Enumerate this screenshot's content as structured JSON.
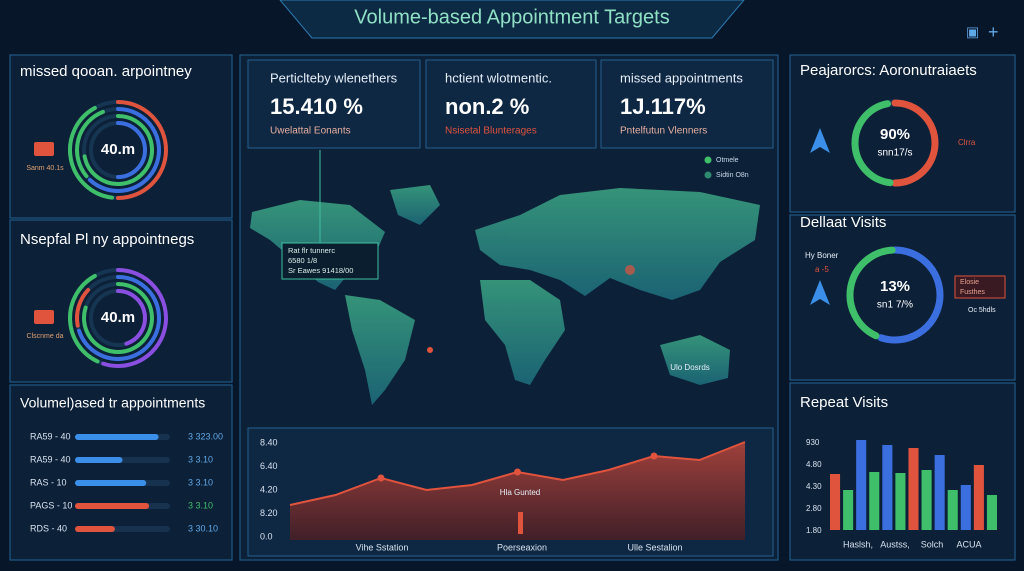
{
  "header": {
    "title": "Volume-based Appointment Targets"
  },
  "left": {
    "donut_a": {
      "title": "missed qooan. arpointney",
      "center": "40.m",
      "side": "Sanm 40.1s",
      "rings": [
        [
          {
            "color": "#e0533d",
            "value": 0.5
          },
          {
            "color": "#3fbf6a",
            "value": 0.4
          }
        ],
        [
          {
            "color": "#3b6fe0",
            "value": 0.62
          },
          {
            "color": "#3fbf6a",
            "value": 0.3
          }
        ],
        [
          {
            "color": "#3fbf6a",
            "value": 0.72
          }
        ],
        [
          {
            "color": "#3b6fe0",
            "value": 0.5
          }
        ]
      ]
    },
    "donut_b": {
      "title": "Nsepfal Pl ny appointnegs",
      "center": "40.m",
      "side": "Clscnme da",
      "rings": [
        [
          {
            "color": "#8a4fe0",
            "value": 0.55
          },
          {
            "color": "#3fbf6a",
            "value": 0.35
          }
        ],
        [
          {
            "color": "#3b6fe0",
            "value": 0.7
          },
          {
            "color": "#e0533d",
            "value": 0.15
          }
        ],
        [
          {
            "color": "#3fbf6a",
            "value": 0.8
          }
        ],
        [
          {
            "color": "#8a4fe0",
            "value": 0.45
          }
        ]
      ]
    },
    "bars": {
      "title": "Volumel)ased tr appointments",
      "rows": [
        {
          "label": "RA59 - 40",
          "value": 0.88,
          "color": "#3b8fe8",
          "text": "3 323.00"
        },
        {
          "label": "RA59 - 40",
          "value": 0.5,
          "color": "#3b8fe8",
          "text": "3 3.10"
        },
        {
          "label": "RAS - 10",
          "value": 0.75,
          "color": "#3b8fe8",
          "text": "3 3.10"
        },
        {
          "label": "PAGS - 10",
          "value": 0.78,
          "color": "#e0533d",
          "text": "3 3.10"
        },
        {
          "label": "RDS - 40",
          "value": 0.42,
          "color": "#e0533d",
          "text": "3 30.10"
        }
      ]
    }
  },
  "kpis": [
    {
      "title": "Perticlteby wlenethers",
      "value": "15.410 %",
      "sub": "Uwelattal Eonants",
      "sub_color": "#e8b0a0"
    },
    {
      "title": "hctient wlotmentic.",
      "value": "non.2 %",
      "sub": "Nsisetal Blunterages",
      "sub_color": "#e0533d"
    },
    {
      "title": "missed appointments",
      "value": "1J.117%",
      "sub": "Pntelfutun Vlenners",
      "sub_color": "#e8b0a0"
    }
  ],
  "map": {
    "box": [
      "Rat flr tunnerc",
      "6580 1/8",
      "Sr Eawes 91418/00"
    ],
    "legend": [
      "Otmele",
      "Sidtin  O8n"
    ],
    "note": "Ulo Dosrds"
  },
  "area": {
    "y_labels": [
      "8.40",
      "6.40",
      "4.20",
      "8.20",
      "0.0"
    ],
    "x_labels": [
      "Vihe Sstation",
      "Poerseaxion",
      "Ulle Sestalion"
    ],
    "annotation": "Hla Gunted",
    "values": [
      35,
      45,
      62,
      50,
      55,
      68,
      60,
      70,
      84,
      80,
      98
    ]
  },
  "right": {
    "donut_a": {
      "title": "Peajarorcs: Aoronutraiaets",
      "center": "90%",
      "sub": "snn17/s",
      "side": "Clrra",
      "segments": [
        {
          "color": "#e0533d",
          "value": 0.5
        },
        {
          "color": "#3fbf6a",
          "value": 0.45
        }
      ]
    },
    "donut_b": {
      "title": "Dellaat Visits",
      "center": "13%",
      "sub": "sn1 7/%",
      "side": [
        "Hy Boner",
        "a -5"
      ],
      "box": [
        "Elosie",
        "Fusthes"
      ],
      "note": "Oc 5hdls",
      "segments": [
        {
          "color": "#3b6fe0",
          "value": 0.55
        },
        {
          "color": "#3fbf6a",
          "value": 0.42
        }
      ]
    },
    "bars": {
      "title": "Repeat Visits",
      "y_labels": [
        "930",
        "4.80",
        "4.30",
        "2.80",
        "1.80"
      ],
      "x_labels": [
        "Haslsh,",
        "Austss,",
        "Solch",
        "ACUA"
      ],
      "bars": [
        {
          "color": "#e0533d",
          "value": 56
        },
        {
          "color": "#3fbf6a",
          "value": 40
        },
        {
          "color": "#3b6fe0",
          "value": 90
        },
        {
          "color": "#3fbf6a",
          "value": 58
        },
        {
          "color": "#3b6fe0",
          "value": 85
        },
        {
          "color": "#3fbf6a",
          "value": 57
        },
        {
          "color": "#e0533d",
          "value": 82
        },
        {
          "color": "#3fbf6a",
          "value": 60
        },
        {
          "color": "#3b6fe0",
          "value": 75
        },
        {
          "color": "#3fbf6a",
          "value": 40
        },
        {
          "color": "#3b6fe0",
          "value": 45
        },
        {
          "color": "#e0533d",
          "value": 65
        },
        {
          "color": "#3fbf6a",
          "value": 35
        }
      ]
    }
  }
}
